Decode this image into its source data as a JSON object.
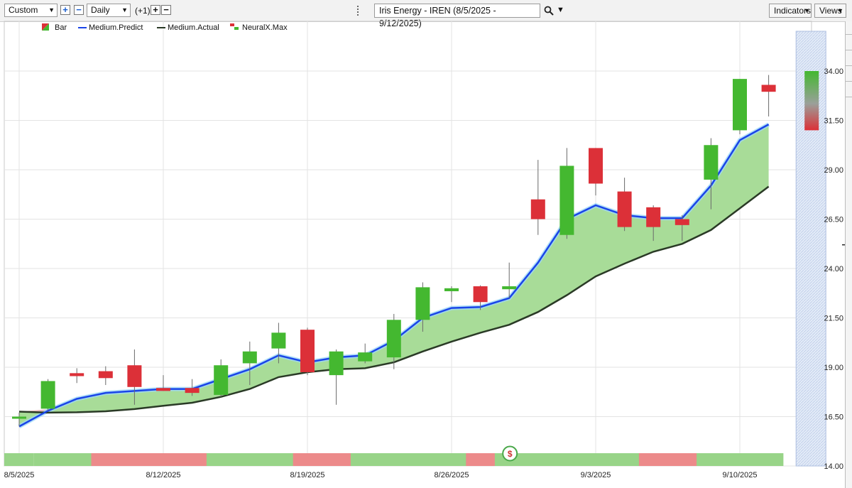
{
  "toolbar": {
    "range": "Custom",
    "interval": "Daily",
    "offset": "(+1)",
    "chart_title": "Iris Energy - IREN (8/5/2025 - 9/12/2025)",
    "indicators_label": "Indicators",
    "views_label": "Views"
  },
  "icons": {
    "plus": "+",
    "minus": "−",
    "search": "search-icon",
    "caret": "▾"
  },
  "colors": {
    "up": "#44b830",
    "down": "#dc3038",
    "predict": "#1a44e8",
    "actual": "#2a3a26",
    "band": "#a8dc98",
    "signal_green": "#98d488",
    "signal_red": "#ec8a8a"
  },
  "chart_data": {
    "type": "candlestick",
    "legend": [
      "Bar",
      "Medium.Predict",
      "Medium.Actual",
      "NeuralX.Max"
    ],
    "yaxis": {
      "min": 14.0,
      "max": 35.0,
      "ticks": [
        "34.00",
        "31.50",
        "29.00",
        "26.50",
        "24.00",
        "21.50",
        "19.00",
        "16.50",
        "14.00"
      ]
    },
    "xaxis": {
      "labels": [
        {
          "text": "8/5/2025",
          "index": 0
        },
        {
          "text": "8/12/2025",
          "index": 5
        },
        {
          "text": "8/19/2025",
          "index": 10
        },
        {
          "text": "8/26/2025",
          "index": 15
        },
        {
          "text": "9/3/2025",
          "index": 20
        },
        {
          "text": "9/10/2025",
          "index": 25
        }
      ]
    },
    "candles": [
      {
        "o": 16.5,
        "h": 16.7,
        "l": 16.0,
        "c": 16.5
      },
      {
        "o": 16.9,
        "h": 18.4,
        "l": 16.8,
        "c": 18.3
      },
      {
        "o": 18.7,
        "h": 18.95,
        "l": 18.2,
        "c": 18.55
      },
      {
        "o": 18.8,
        "h": 19.05,
        "l": 18.1,
        "c": 18.45
      },
      {
        "o": 19.1,
        "h": 19.9,
        "l": 17.1,
        "c": 18.0
      },
      {
        "o": 17.95,
        "h": 18.6,
        "l": 17.8,
        "c": 17.8
      },
      {
        "o": 17.95,
        "h": 18.4,
        "l": 17.55,
        "c": 17.7
      },
      {
        "o": 17.6,
        "h": 19.4,
        "l": 17.5,
        "c": 19.1
      },
      {
        "o": 19.2,
        "h": 20.3,
        "l": 18.1,
        "c": 19.8
      },
      {
        "o": 19.95,
        "h": 21.25,
        "l": 19.2,
        "c": 20.75
      },
      {
        "o": 20.9,
        "h": 21.0,
        "l": 18.6,
        "c": 18.75
      },
      {
        "o": 18.6,
        "h": 19.9,
        "l": 17.1,
        "c": 19.8
      },
      {
        "o": 19.3,
        "h": 20.2,
        "l": 19.2,
        "c": 19.75
      },
      {
        "o": 19.5,
        "h": 21.7,
        "l": 18.9,
        "c": 21.4
      },
      {
        "o": 21.4,
        "h": 23.3,
        "l": 20.8,
        "c": 23.05
      },
      {
        "o": 22.85,
        "h": 23.1,
        "l": 22.3,
        "c": 23.0
      },
      {
        "o": 23.1,
        "h": 23.15,
        "l": 21.9,
        "c": 22.3
      },
      {
        "o": 22.95,
        "h": 24.3,
        "l": 22.5,
        "c": 23.1
      },
      {
        "o": 27.5,
        "h": 29.5,
        "l": 25.7,
        "c": 26.5
      },
      {
        "o": 25.7,
        "h": 30.1,
        "l": 25.5,
        "c": 29.2
      },
      {
        "o": 30.1,
        "h": 30.1,
        "l": 27.7,
        "c": 28.3
      },
      {
        "o": 27.9,
        "h": 28.6,
        "l": 25.9,
        "c": 26.1
      },
      {
        "o": 27.1,
        "h": 27.2,
        "l": 25.4,
        "c": 26.1
      },
      {
        "o": 26.5,
        "h": 26.7,
        "l": 25.4,
        "c": 26.2
      },
      {
        "o": 28.5,
        "h": 30.6,
        "l": 27.0,
        "c": 30.25
      },
      {
        "o": 31.0,
        "h": 33.6,
        "l": 30.8,
        "c": 33.6
      },
      {
        "o": 33.3,
        "h": 33.8,
        "l": 31.7,
        "c": 32.95
      }
    ],
    "series": [
      {
        "name": "Medium.Predict",
        "values": [
          16.0,
          16.8,
          17.4,
          17.7,
          17.8,
          17.9,
          17.9,
          18.4,
          18.9,
          19.6,
          19.25,
          19.5,
          19.6,
          20.35,
          21.5,
          22.0,
          22.05,
          22.5,
          24.3,
          26.5,
          27.2,
          26.7,
          26.55,
          26.55,
          28.2,
          30.5,
          31.3
        ]
      },
      {
        "name": "Medium.Actual",
        "values": [
          16.75,
          16.7,
          16.72,
          16.77,
          16.88,
          17.05,
          17.2,
          17.5,
          17.9,
          18.5,
          18.75,
          18.9,
          18.95,
          19.25,
          19.8,
          20.3,
          20.75,
          21.15,
          21.8,
          22.65,
          23.6,
          24.25,
          24.85,
          25.25,
          25.95,
          27.05,
          28.15
        ]
      }
    ],
    "neuralx_max": {
      "top": 34.0,
      "bottom": 31.0
    },
    "signal_bar": [
      "green",
      "green",
      "green",
      "red",
      "red",
      "red",
      "red",
      "green",
      "green",
      "green",
      "red",
      "red",
      "green",
      "green",
      "green",
      "green",
      "red",
      "green",
      "green",
      "green",
      "green",
      "green",
      "red",
      "red",
      "green",
      "green",
      "green"
    ],
    "signal_marker": "$"
  }
}
